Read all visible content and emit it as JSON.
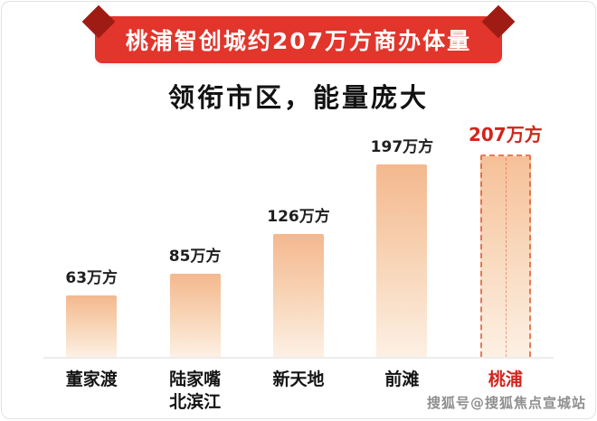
{
  "banner": {
    "title": "桃浦智创城约207万方商办体量"
  },
  "subtitle": "领衔市区，能量庞大",
  "watermark": "搜狐号@搜狐焦点宣城站",
  "colors": {
    "ribbon_red": "#e2352b",
    "ribbon_fold": "#9e1c14",
    "highlight_red": "#d0251d",
    "bar_top": "#f4b88e",
    "bar_bottom": "#fdf0e4"
  },
  "chart_data": {
    "type": "bar",
    "title": "桃浦智创城约207万方商办体量",
    "subtitle": "领衔市区，能量庞大",
    "categories": [
      "董家渡",
      "陆家嘴\n北滨江",
      "新天地",
      "前滩",
      "桃浦"
    ],
    "values": [
      63,
      85,
      126,
      197,
      207
    ],
    "unit": "万方",
    "value_labels": [
      "63万方",
      "85万方",
      "126万方",
      "197万方",
      "207万方"
    ],
    "highlight_index": 4,
    "ylabel": "",
    "xlabel": "",
    "ylim": [
      0,
      220
    ],
    "grid": false,
    "legend": false
  }
}
